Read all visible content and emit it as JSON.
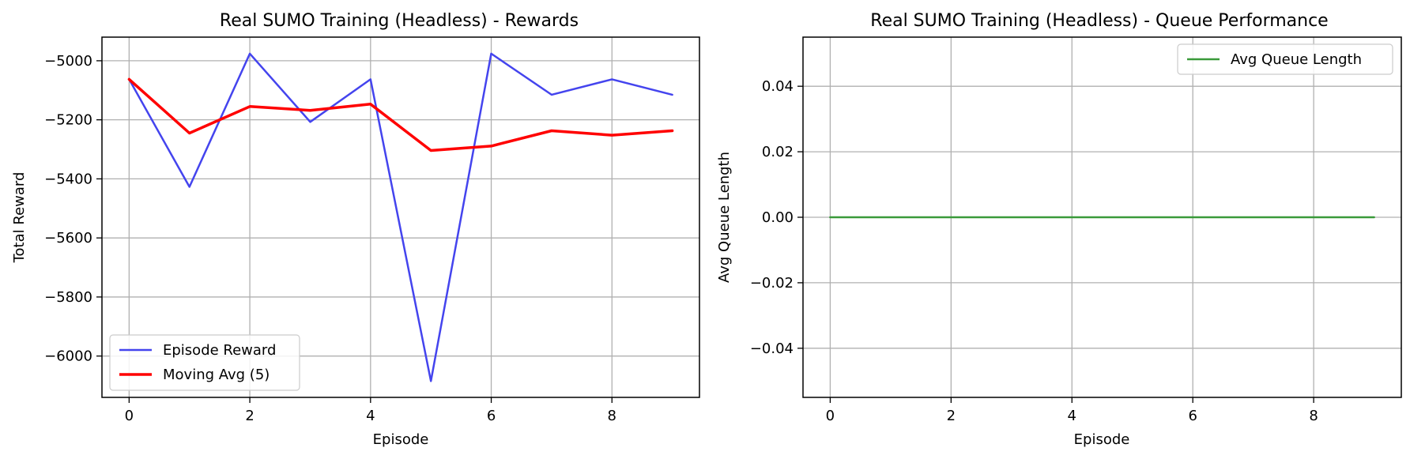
{
  "chart_data": [
    {
      "type": "line",
      "title": "Real SUMO Training (Headless) - Rewards",
      "xlabel": "Episode",
      "ylabel": "Total Reward",
      "xlim": [
        -0.45,
        9.45
      ],
      "ylim": [
        -6140,
        -4920
      ],
      "xticks": [
        0,
        2,
        4,
        6,
        8
      ],
      "yticks": [
        -6000,
        -5800,
        -5600,
        -5400,
        -5200,
        -5000
      ],
      "grid": true,
      "legend_position": "lower-left",
      "x": [
        0,
        1,
        2,
        3,
        4,
        5,
        6,
        7,
        8,
        9
      ],
      "series": [
        {
          "name": "Episode Reward",
          "color": "#4444ee",
          "values": [
            -5063,
            -5427,
            -4976,
            -5207,
            -5063,
            -6085,
            -4976,
            -5115,
            -5063,
            -5115
          ]
        },
        {
          "name": "Moving Avg (5)",
          "color": "#ff0000",
          "values": [
            -5063,
            -5245,
            -5155,
            -5168,
            -5147,
            -5304,
            -5289,
            -5237,
            -5252,
            -5237
          ]
        }
      ]
    },
    {
      "type": "line",
      "title": "Real SUMO Training (Headless) - Queue Performance",
      "xlabel": "Episode",
      "ylabel": "Avg Queue Length",
      "xlim": [
        -0.45,
        9.45
      ],
      "ylim": [
        -0.055,
        0.055
      ],
      "xticks": [
        0,
        2,
        4,
        6,
        8
      ],
      "yticks": [
        -0.04,
        -0.02,
        0.0,
        0.02,
        0.04
      ],
      "ytick_labels": [
        "−0.04",
        "−0.02",
        "0.00",
        "0.02",
        "0.04"
      ],
      "grid": true,
      "legend_position": "upper-right",
      "x": [
        0,
        1,
        2,
        3,
        4,
        5,
        6,
        7,
        8,
        9
      ],
      "series": [
        {
          "name": "Avg Queue Length",
          "color": "#3a9a3a",
          "values": [
            0,
            0,
            0,
            0,
            0,
            0,
            0,
            0,
            0,
            0
          ]
        }
      ]
    }
  ]
}
